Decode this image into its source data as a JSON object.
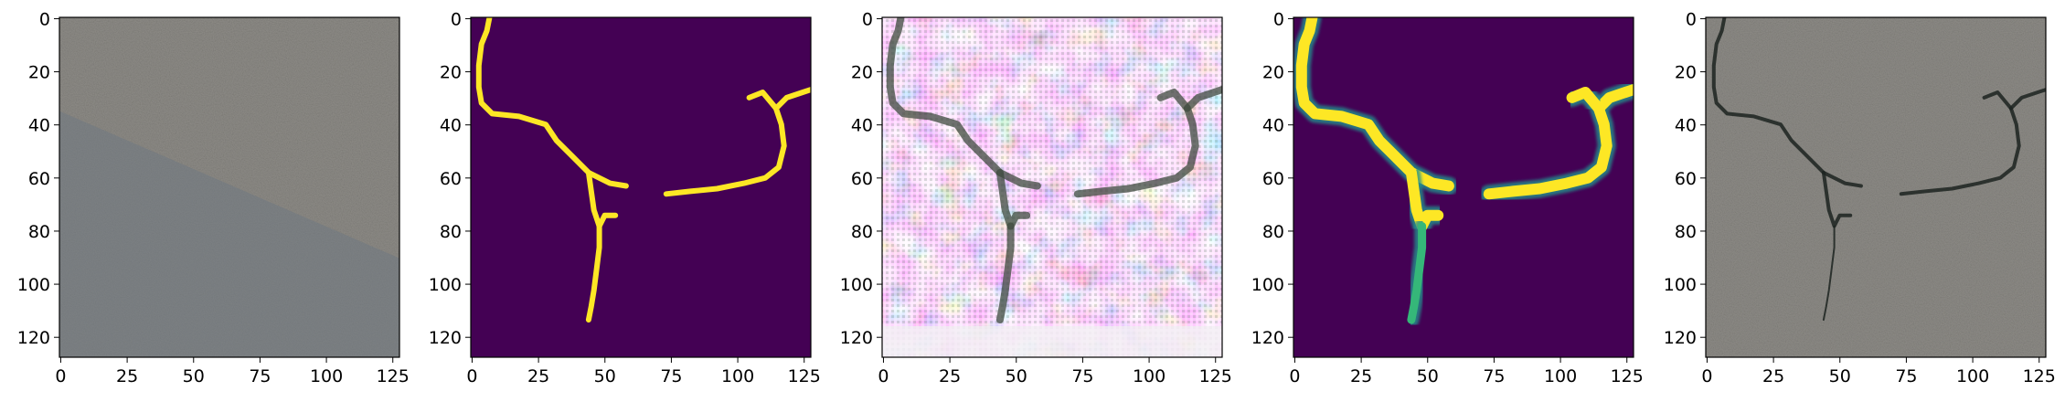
{
  "panels": [
    {
      "id": "input-photo",
      "kind": "photo"
    },
    {
      "id": "ground-truth-mask",
      "kind": "mask"
    },
    {
      "id": "generated-image",
      "kind": "noisy"
    },
    {
      "id": "predicted-mask",
      "kind": "soft-mask"
    },
    {
      "id": "overlay-photo",
      "kind": "overlay"
    }
  ],
  "axes": {
    "x_ticks": [
      "0",
      "25",
      "50",
      "75",
      "100",
      "125"
    ],
    "y_ticks": [
      "0",
      "20",
      "40",
      "60",
      "80",
      "100",
      "120"
    ],
    "x_range": [
      0,
      127
    ],
    "y_range": [
      0,
      127
    ]
  },
  "colors": {
    "viridis_dark": "#440154",
    "viridis_yellow": "#fde725",
    "viridis_green": "#35b779",
    "viridis_teal": "#21918c",
    "asphalt_light": "#8e8c87",
    "asphalt_shadow": "#6f7881",
    "crack_dark": "#1c2320"
  },
  "cracks": {
    "left": [
      [
        7,
        0
      ],
      [
        6,
        5
      ],
      [
        4,
        10
      ],
      [
        3,
        18
      ],
      [
        3,
        26
      ],
      [
        4,
        32
      ],
      [
        8,
        36
      ],
      [
        18,
        37
      ],
      [
        28,
        40
      ],
      [
        32,
        46
      ],
      [
        38,
        52
      ],
      [
        44,
        58
      ],
      [
        52,
        62
      ],
      [
        58,
        63
      ]
    ],
    "branch": [
      [
        44,
        58
      ],
      [
        45,
        65
      ],
      [
        46,
        72
      ],
      [
        48,
        78
      ],
      [
        50,
        74
      ],
      [
        54,
        74
      ]
    ],
    "down": [
      [
        48,
        78
      ],
      [
        48,
        86
      ],
      [
        47,
        94
      ],
      [
        46,
        102
      ],
      [
        45,
        108
      ],
      [
        44,
        113
      ]
    ],
    "right": [
      [
        73,
        66
      ],
      [
        82,
        65
      ],
      [
        92,
        64
      ],
      [
        102,
        62
      ],
      [
        110,
        60
      ],
      [
        115,
        56
      ],
      [
        117,
        48
      ],
      [
        116,
        40
      ],
      [
        114,
        34
      ],
      [
        118,
        30
      ],
      [
        124,
        28
      ],
      [
        127,
        27
      ]
    ],
    "right_spur": [
      [
        114,
        34
      ],
      [
        109,
        28
      ],
      [
        104,
        30
      ]
    ]
  }
}
